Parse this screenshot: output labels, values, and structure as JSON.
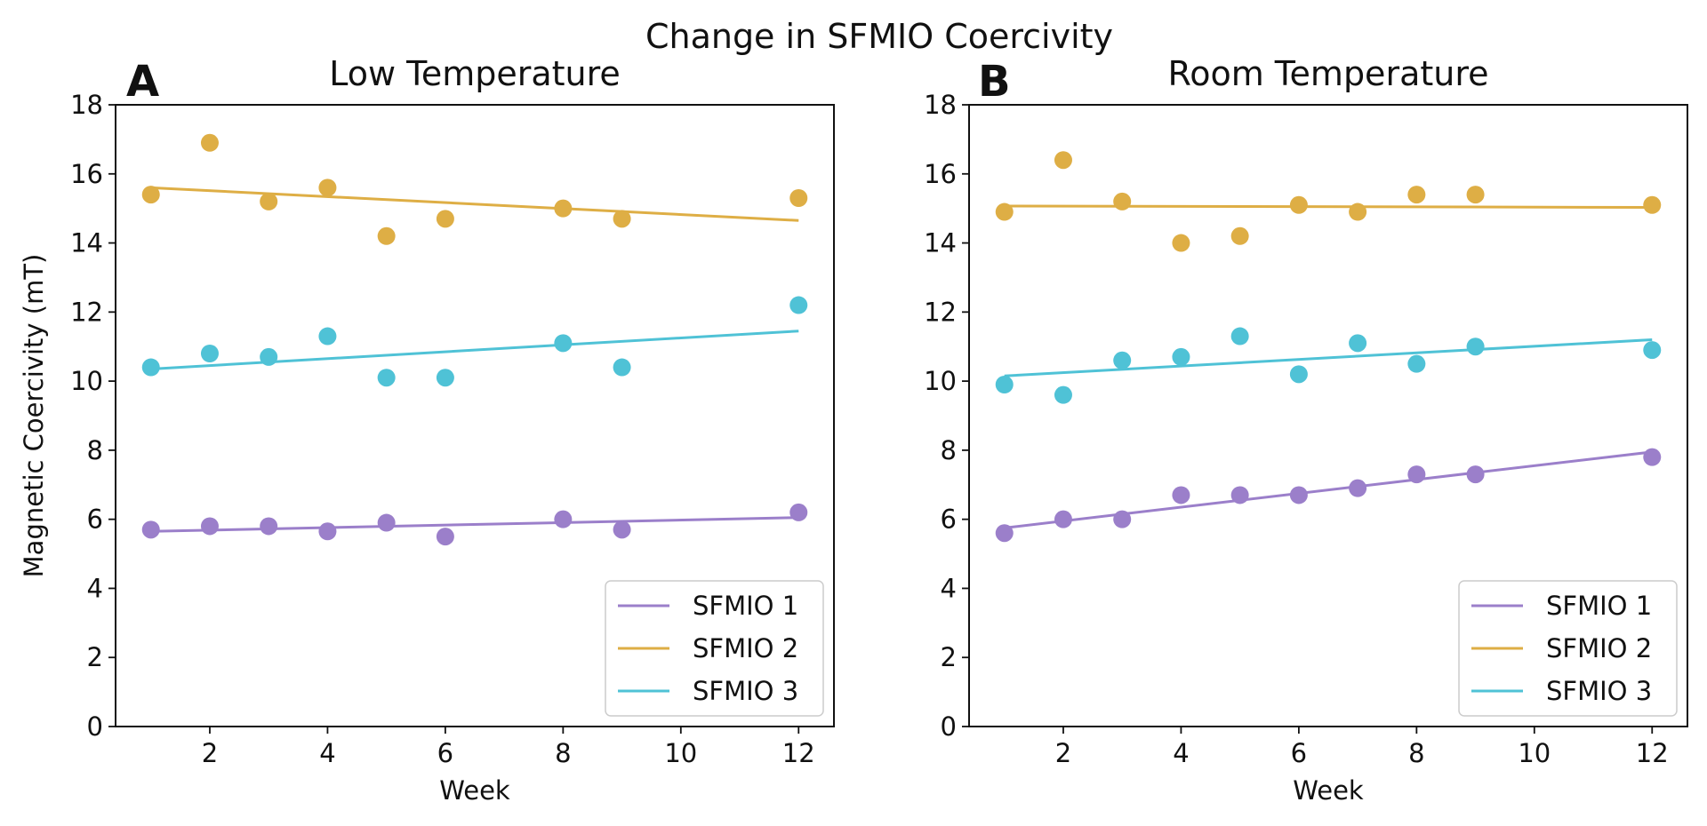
{
  "figure": {
    "title": "Change in SFMIO Coercivity"
  },
  "chart_data": [
    {
      "type": "scatter",
      "panel": "A",
      "title": "Low Temperature",
      "xlabel": "Week",
      "ylabel": "Magnetic Coercivity (mT)",
      "xlim": [
        0.4,
        12.6
      ],
      "ylim": [
        0,
        18
      ],
      "xticks": [
        2,
        4,
        6,
        8,
        10,
        12
      ],
      "yticks": [
        0,
        2,
        4,
        6,
        8,
        10,
        12,
        14,
        16,
        18
      ],
      "legend": "lower-right",
      "series": [
        {
          "name": "SFMIO 1",
          "color": "#9b7fca",
          "points": [
            [
              1,
              5.7
            ],
            [
              2,
              5.8
            ],
            [
              3,
              5.8
            ],
            [
              4,
              5.65
            ],
            [
              5,
              5.9
            ],
            [
              6,
              5.5
            ],
            [
              8,
              6.0
            ],
            [
              9,
              5.7
            ],
            [
              12,
              6.2
            ]
          ],
          "fit": [
            [
              1,
              5.65
            ],
            [
              12,
              6.05
            ]
          ]
        },
        {
          "name": "SFMIO 2",
          "color": "#deae45",
          "points": [
            [
              1,
              15.4
            ],
            [
              2,
              16.9
            ],
            [
              3,
              15.2
            ],
            [
              4,
              15.6
            ],
            [
              5,
              14.2
            ],
            [
              6,
              14.7
            ],
            [
              8,
              15.0
            ],
            [
              9,
              14.7
            ],
            [
              12,
              15.3
            ]
          ],
          "fit": [
            [
              1,
              15.6
            ],
            [
              12,
              14.65
            ]
          ]
        },
        {
          "name": "SFMIO 3",
          "color": "#4fc2d6",
          "points": [
            [
              1,
              10.4
            ],
            [
              2,
              10.8
            ],
            [
              3,
              10.7
            ],
            [
              4,
              11.3
            ],
            [
              5,
              10.1
            ],
            [
              6,
              10.1
            ],
            [
              8,
              11.1
            ],
            [
              9,
              10.4
            ],
            [
              12,
              12.2
            ]
          ],
          "fit": [
            [
              1,
              10.35
            ],
            [
              12,
              11.45
            ]
          ]
        }
      ]
    },
    {
      "type": "scatter",
      "panel": "B",
      "title": "Room Temperature",
      "xlabel": "Week",
      "ylabel": "",
      "xlim": [
        0.4,
        12.6
      ],
      "ylim": [
        0,
        18
      ],
      "xticks": [
        2,
        4,
        6,
        8,
        10,
        12
      ],
      "yticks": [
        0,
        2,
        4,
        6,
        8,
        10,
        12,
        14,
        16,
        18
      ],
      "legend": "lower-right",
      "series": [
        {
          "name": "SFMIO 1",
          "color": "#9b7fca",
          "points": [
            [
              1,
              5.6
            ],
            [
              2,
              6.0
            ],
            [
              3,
              6.0
            ],
            [
              4,
              6.7
            ],
            [
              5,
              6.7
            ],
            [
              6,
              6.7
            ],
            [
              7,
              6.9
            ],
            [
              8,
              7.3
            ],
            [
              9,
              7.3
            ],
            [
              12,
              7.8
            ]
          ],
          "fit": [
            [
              1,
              5.75
            ],
            [
              12,
              7.95
            ]
          ]
        },
        {
          "name": "SFMIO 2",
          "color": "#deae45",
          "points": [
            [
              1,
              14.9
            ],
            [
              2,
              16.4
            ],
            [
              3,
              15.2
            ],
            [
              4,
              14.0
            ],
            [
              5,
              14.2
            ],
            [
              6,
              15.1
            ],
            [
              7,
              14.9
            ],
            [
              8,
              15.4
            ],
            [
              9,
              15.4
            ],
            [
              12,
              15.1
            ]
          ],
          "fit": [
            [
              1,
              15.07
            ],
            [
              12,
              15.03
            ]
          ]
        },
        {
          "name": "SFMIO 3",
          "color": "#4fc2d6",
          "points": [
            [
              1,
              9.9
            ],
            [
              2,
              9.6
            ],
            [
              3,
              10.6
            ],
            [
              4,
              10.7
            ],
            [
              5,
              11.3
            ],
            [
              6,
              10.2
            ],
            [
              7,
              11.1
            ],
            [
              8,
              10.5
            ],
            [
              9,
              11.0
            ],
            [
              12,
              10.9
            ]
          ],
          "fit": [
            [
              1,
              10.15
            ],
            [
              12,
              11.2
            ]
          ]
        }
      ]
    }
  ]
}
